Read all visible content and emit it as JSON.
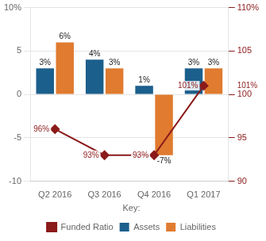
{
  "chart_data": {
    "type": "bar",
    "categories": [
      "Q2 2016",
      "Q3 2016",
      "Q4 2016",
      "Q1 2017"
    ],
    "series": [
      {
        "name": "Assets",
        "type": "bar",
        "color": "#1b5f8c",
        "values": [
          3,
          4,
          1,
          3
        ],
        "value_labels": [
          "3%",
          "4%",
          "1%",
          "3%"
        ]
      },
      {
        "name": "Liabilities",
        "type": "bar",
        "color": "#e07b30",
        "values": [
          6,
          3,
          -7,
          3
        ],
        "value_labels": [
          "6%",
          "3%",
          "-7%",
          "3%"
        ]
      },
      {
        "name": "Funded Ratio",
        "type": "line",
        "axis": "y2",
        "color": "#8b1a1a",
        "marker": "diamond",
        "values": [
          96,
          93,
          93,
          101
        ],
        "value_labels": [
          "96%",
          "93%",
          "93%",
          "101%"
        ]
      }
    ],
    "ylim": [
      -10,
      10
    ],
    "yticks": [
      -10,
      -5,
      0,
      5,
      {
        "value": 10,
        "label": "10%"
      }
    ],
    "y2lim": [
      90,
      110
    ],
    "y2ticks": [
      90,
      95,
      100,
      105,
      {
        "value": 110,
        "label": "110%"
      }
    ],
    "annotations": [
      {
        "text": "101%",
        "y": 101,
        "axis": "y2"
      }
    ],
    "grid": true,
    "data_labels": true,
    "legend": "bottom",
    "legend_title": "Key:"
  }
}
